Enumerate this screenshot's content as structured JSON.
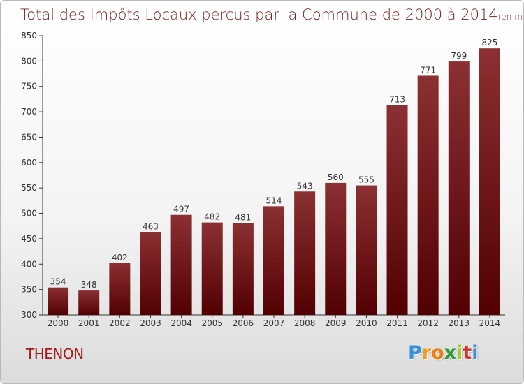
{
  "chart_data": {
    "type": "bar",
    "title": "Total des Impôts Locaux perçus par la Commune de 2000 à 2014",
    "subtitle": "(en milliers d'€)",
    "categories": [
      "2000",
      "2001",
      "2002",
      "2003",
      "2004",
      "2005",
      "2006",
      "2007",
      "2008",
      "2009",
      "2010",
      "2011",
      "2012",
      "2013",
      "2014"
    ],
    "values": [
      354,
      348,
      402,
      463,
      497,
      482,
      481,
      514,
      543,
      560,
      555,
      713,
      771,
      799,
      825
    ],
    "ylim": [
      300,
      850
    ],
    "yticks": [
      300,
      350,
      400,
      450,
      500,
      550,
      600,
      650,
      700,
      750,
      800,
      850
    ],
    "grid": false,
    "colors": {
      "bar_top": "#8b3033",
      "bar_bottom": "#520002",
      "axis": "#333333"
    }
  },
  "commune": "THENON",
  "logo": {
    "letters": [
      "P",
      "r",
      "o",
      "x",
      "i",
      "t",
      "i"
    ],
    "colors": [
      "#3a8fd6",
      "#f0a020",
      "#f07d14",
      "#2a9a3c",
      "#a8c838",
      "#d8302c",
      "#3a8fd6"
    ]
  }
}
